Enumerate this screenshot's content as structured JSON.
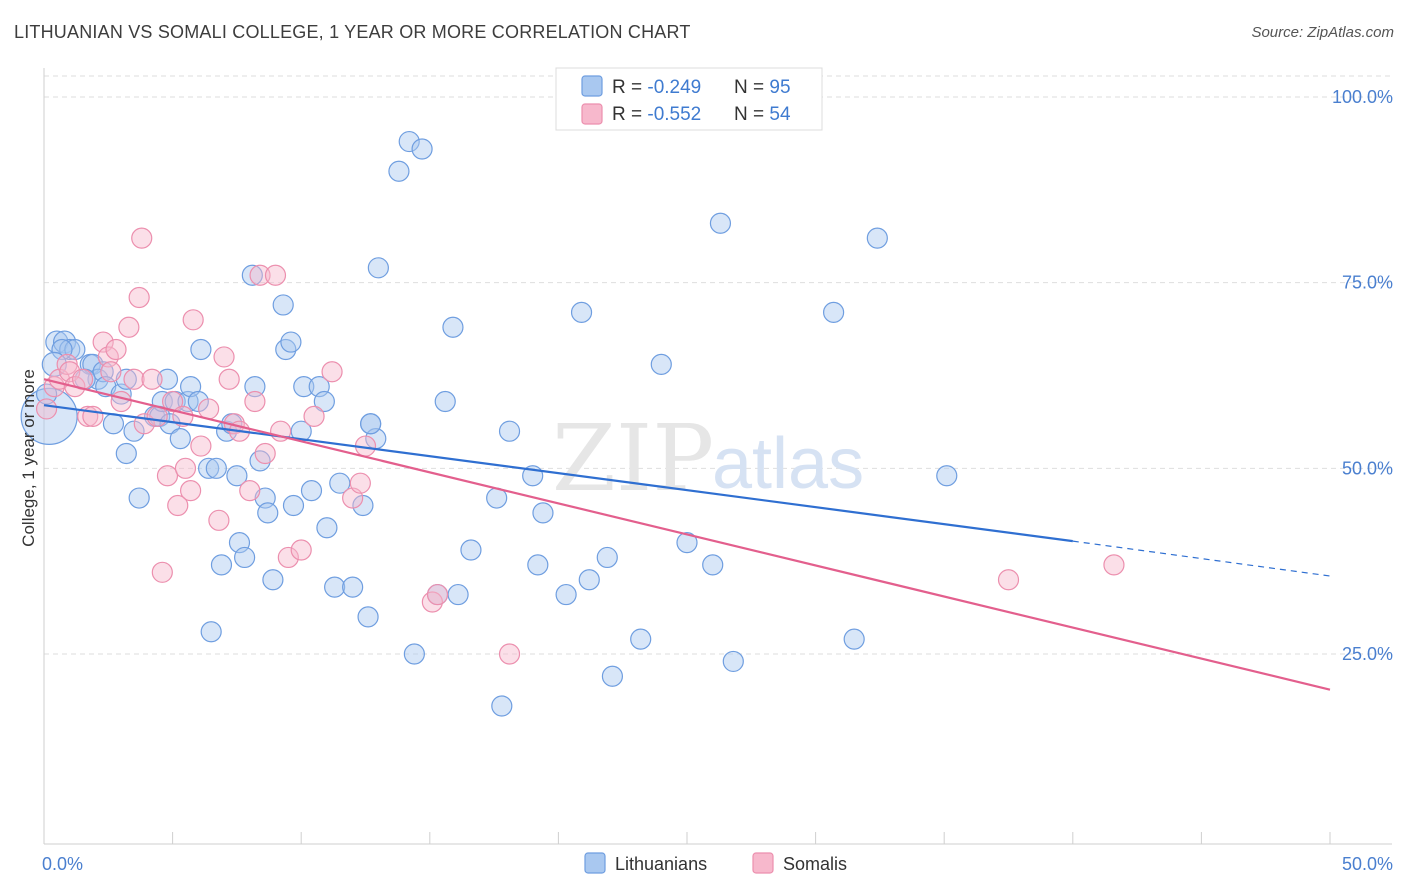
{
  "title": "LITHUANIAN VS SOMALI COLLEGE, 1 YEAR OR MORE CORRELATION CHART",
  "source": "Source: ZipAtlas.com",
  "watermark": {
    "zip": "ZIP",
    "atlas": "atlas"
  },
  "chart_data": {
    "type": "scatter",
    "ylabel": "College, 1 year or more",
    "xlim": [
      0,
      50
    ],
    "ylim": [
      0,
      103
    ],
    "x_tick_labels": {
      "left": "0.0%",
      "right": "50.0%"
    },
    "y_ticks": [
      {
        "value": 100,
        "label": "100.0%"
      },
      {
        "value": 75,
        "label": "75.0%"
      },
      {
        "value": 50,
        "label": "50.0%"
      },
      {
        "value": 25,
        "label": "25.0%"
      }
    ],
    "grid": true,
    "legend_position": "top-center",
    "colors": {
      "lithuanians_fill": "#a9c8f0",
      "lithuanians_stroke": "#6f9ee0",
      "lithuanians_line": "#2f6fd1",
      "somalis_fill": "#f7b8cc",
      "somalis_stroke": "#ec8fae",
      "somalis_line": "#e35f8d"
    },
    "stats": [
      {
        "r_label": "R = ",
        "r_value": "-0.249",
        "n_label": "N = ",
        "n_value": "95"
      },
      {
        "r_label": "R = ",
        "r_value": "-0.552",
        "n_label": "N = ",
        "n_value": "54"
      }
    ],
    "series": [
      {
        "name": "Lithuanians",
        "trend": {
          "x0": 0,
          "y0": 58.5,
          "x1": 40,
          "y1": 40.2,
          "dash_to_x": 50,
          "dash_to_y": 35.5
        },
        "points": [
          [
            0.2,
            57,
            28
          ],
          [
            0.5,
            67,
            11
          ],
          [
            0.8,
            67,
            11
          ],
          [
            1.0,
            66,
            10
          ],
          [
            1.2,
            66,
            10
          ],
          [
            0.7,
            66,
            10
          ],
          [
            1.8,
            64,
            10
          ],
          [
            1.9,
            64,
            10
          ],
          [
            2.1,
            62,
            10
          ],
          [
            2.3,
            63,
            10
          ],
          [
            2.4,
            61,
            10
          ],
          [
            3.0,
            60,
            10
          ],
          [
            2.7,
            56,
            10
          ],
          [
            3.2,
            62,
            10
          ],
          [
            3.5,
            55,
            10
          ],
          [
            3.2,
            52,
            10
          ],
          [
            3.7,
            46,
            10
          ],
          [
            4.3,
            57,
            10
          ],
          [
            4.5,
            57,
            10
          ],
          [
            4.6,
            59,
            10
          ],
          [
            4.8,
            62,
            10
          ],
          [
            4.9,
            56,
            10
          ],
          [
            5.1,
            59,
            10
          ],
          [
            5.3,
            54,
            10
          ],
          [
            5.6,
            59,
            10
          ],
          [
            5.7,
            61,
            10
          ],
          [
            6.0,
            59,
            10
          ],
          [
            6.1,
            66,
            10
          ],
          [
            6.4,
            50,
            10
          ],
          [
            6.7,
            50,
            10
          ],
          [
            6.5,
            28,
            10
          ],
          [
            6.9,
            37,
            10
          ],
          [
            7.1,
            55,
            10
          ],
          [
            7.3,
            56,
            10
          ],
          [
            7.5,
            49,
            10
          ],
          [
            7.6,
            40,
            10
          ],
          [
            7.8,
            38,
            10
          ],
          [
            8.1,
            76,
            10
          ],
          [
            8.2,
            61,
            10
          ],
          [
            8.4,
            51,
            10
          ],
          [
            8.6,
            46,
            10
          ],
          [
            8.7,
            44,
            10
          ],
          [
            8.9,
            35,
            10
          ],
          [
            9.3,
            72,
            10
          ],
          [
            9.4,
            66,
            10
          ],
          [
            9.6,
            67,
            10
          ],
          [
            9.7,
            45,
            10
          ],
          [
            10.0,
            55,
            10
          ],
          [
            10.1,
            61,
            10
          ],
          [
            10.4,
            47,
            10
          ],
          [
            10.7,
            61,
            10
          ],
          [
            10.9,
            59,
            10
          ],
          [
            11.0,
            42,
            10
          ],
          [
            11.3,
            34,
            10
          ],
          [
            11.5,
            48,
            10
          ],
          [
            12.0,
            34,
            10
          ],
          [
            12.4,
            45,
            10
          ],
          [
            12.6,
            30,
            10
          ],
          [
            12.7,
            56,
            10
          ],
          [
            12.9,
            54,
            10
          ],
          [
            13.0,
            77,
            10
          ],
          [
            13.8,
            90,
            10
          ],
          [
            14.2,
            94,
            10
          ],
          [
            14.4,
            25,
            10
          ],
          [
            14.7,
            93,
            10
          ],
          [
            15.3,
            33,
            10
          ],
          [
            15.6,
            59,
            10
          ],
          [
            15.9,
            69,
            10
          ],
          [
            16.1,
            33,
            10
          ],
          [
            16.6,
            39,
            10
          ],
          [
            17.6,
            46,
            10
          ],
          [
            17.8,
            18,
            10
          ],
          [
            18.1,
            55,
            10
          ],
          [
            19.0,
            49,
            10
          ],
          [
            19.4,
            44,
            10
          ],
          [
            19.2,
            37,
            10
          ],
          [
            20.3,
            33,
            10
          ],
          [
            20.9,
            71,
            10
          ],
          [
            21.2,
            35,
            10
          ],
          [
            21.9,
            38,
            10
          ],
          [
            22.1,
            22,
            10
          ],
          [
            23.2,
            27,
            10
          ],
          [
            24.0,
            64,
            10
          ],
          [
            25.0,
            40,
            10
          ],
          [
            26.0,
            37,
            10
          ],
          [
            26.3,
            83,
            10
          ],
          [
            26.8,
            24,
            10
          ],
          [
            30.7,
            71,
            10
          ],
          [
            31.5,
            27,
            10
          ],
          [
            32.4,
            81,
            10
          ],
          [
            35.1,
            49,
            10
          ],
          [
            12.7,
            56,
            10
          ],
          [
            0.4,
            64,
            12
          ],
          [
            0.1,
            60,
            10
          ],
          [
            1.6,
            62,
            10
          ]
        ]
      },
      {
        "name": "Somalis",
        "trend": {
          "x0": 0,
          "y0": 62,
          "x1": 50,
          "y1": 20.2
        },
        "points": [
          [
            0.1,
            58,
            10
          ],
          [
            0.4,
            61,
            10
          ],
          [
            0.6,
            62,
            10
          ],
          [
            0.9,
            64,
            10
          ],
          [
            1.0,
            63,
            10
          ],
          [
            1.2,
            61,
            10
          ],
          [
            1.5,
            62,
            10
          ],
          [
            1.7,
            57,
            10
          ],
          [
            1.9,
            57,
            10
          ],
          [
            2.3,
            67,
            10
          ],
          [
            2.5,
            65,
            10
          ],
          [
            2.6,
            63,
            10
          ],
          [
            2.8,
            66,
            10
          ],
          [
            3.0,
            59,
            10
          ],
          [
            3.3,
            69,
            10
          ],
          [
            3.5,
            62,
            10
          ],
          [
            3.7,
            73,
            10
          ],
          [
            3.8,
            81,
            10
          ],
          [
            3.9,
            56,
            10
          ],
          [
            4.2,
            62,
            10
          ],
          [
            4.4,
            57,
            10
          ],
          [
            4.6,
            36,
            10
          ],
          [
            4.8,
            49,
            10
          ],
          [
            5.0,
            59,
            10
          ],
          [
            5.2,
            45,
            10
          ],
          [
            5.4,
            57,
            10
          ],
          [
            5.5,
            50,
            10
          ],
          [
            5.7,
            47,
            10
          ],
          [
            5.8,
            70,
            10
          ],
          [
            6.1,
            53,
            10
          ],
          [
            6.4,
            58,
            10
          ],
          [
            6.8,
            43,
            10
          ],
          [
            7.0,
            65,
            10
          ],
          [
            7.2,
            62,
            10
          ],
          [
            7.4,
            56,
            10
          ],
          [
            7.6,
            55,
            10
          ],
          [
            8.0,
            47,
            10
          ],
          [
            8.2,
            59,
            10
          ],
          [
            8.4,
            76,
            10
          ],
          [
            8.6,
            52,
            10
          ],
          [
            9.0,
            76,
            10
          ],
          [
            9.2,
            55,
            10
          ],
          [
            9.5,
            38,
            10
          ],
          [
            10.0,
            39,
            10
          ],
          [
            10.5,
            57,
            10
          ],
          [
            11.2,
            63,
            10
          ],
          [
            12.0,
            46,
            10
          ],
          [
            12.3,
            48,
            10
          ],
          [
            12.5,
            53,
            10
          ],
          [
            15.1,
            32,
            10
          ],
          [
            15.3,
            33,
            10
          ],
          [
            18.1,
            25,
            10
          ],
          [
            37.5,
            35,
            10
          ],
          [
            41.6,
            37,
            10
          ]
        ]
      }
    ]
  },
  "bottom_legend": [
    {
      "label": "Lithuanians"
    },
    {
      "label": "Somalis"
    }
  ]
}
